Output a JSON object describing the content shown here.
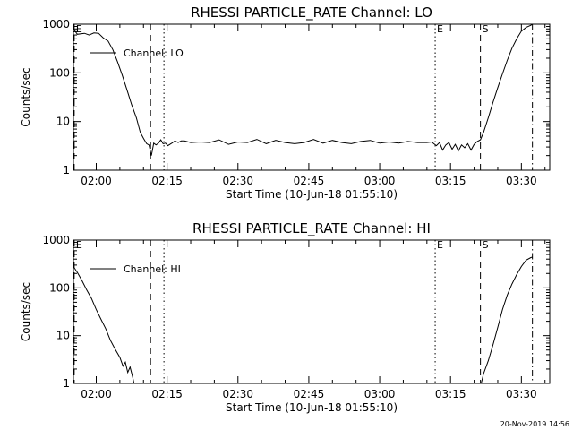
{
  "footer": "20-Nov-2019 14:56",
  "chart_data": [
    {
      "type": "line",
      "title": "RHESSI PARTICLE_RATE Channel: LO",
      "xlabel": "Start Time (10-Jun-18 01:55:10)",
      "ylabel": "Counts/sec",
      "yscale": "log",
      "ylim": [
        1,
        1000
      ],
      "xlim": [
        "01:55:10",
        "03:36:00"
      ],
      "x_ticks": [
        "02:00",
        "02:15",
        "02:30",
        "02:45",
        "03:00",
        "03:15",
        "03:30"
      ],
      "y_ticks": [
        "1",
        "10",
        "100",
        "1000"
      ],
      "legend": {
        "entries": [
          "Channel: LO"
        ],
        "placement": "top-left"
      },
      "markers": [
        {
          "label": "E",
          "time": "01:55:20",
          "style": "dashed"
        },
        {
          "label": "",
          "time": "02:11:30",
          "style": "dashed"
        },
        {
          "label": "",
          "time": "02:14:20",
          "style": "dotted"
        },
        {
          "label": "E",
          "time": "03:11:45",
          "style": "dotted"
        },
        {
          "label": "S",
          "time": "03:21:20",
          "style": "dashed"
        },
        {
          "label": "",
          "time": "03:32:20",
          "style": "dashdot"
        }
      ],
      "series": [
        {
          "name": "Channel: LO",
          "x": [
            "01:55:10",
            "01:56:00",
            "01:57:30",
            "01:58:30",
            "01:59:30",
            "02:00:30",
            "02:01:30",
            "02:02:30",
            "02:03:30",
            "02:04:30",
            "02:05:30",
            "02:06:30",
            "02:07:30",
            "02:08:30",
            "02:09:20",
            "02:10:00",
            "02:10:40",
            "02:11:10",
            "02:11:40",
            "02:12:10",
            "02:12:40",
            "02:13:10",
            "02:13:40",
            "02:14:10",
            "02:14:40",
            "02:15:10",
            "02:16:00",
            "02:16:40",
            "02:17:20",
            "02:18:00",
            "02:18:40",
            "02:20:00",
            "02:22:00",
            "02:24:00",
            "02:26:00",
            "02:28:00",
            "02:30:00",
            "02:32:00",
            "02:34:00",
            "02:36:00",
            "02:38:00",
            "02:40:00",
            "02:42:00",
            "02:44:00",
            "02:46:00",
            "02:48:00",
            "02:50:00",
            "02:52:00",
            "02:54:00",
            "02:56:00",
            "02:58:00",
            "03:00:00",
            "03:02:00",
            "03:04:00",
            "03:06:00",
            "03:08:00",
            "03:10:00",
            "03:11:00",
            "03:12:00",
            "03:12:40",
            "03:13:20",
            "03:14:00",
            "03:14:40",
            "03:15:20",
            "03:16:00",
            "03:16:40",
            "03:17:20",
            "03:18:00",
            "03:18:40",
            "03:19:20",
            "03:20:00",
            "03:20:40",
            "03:21:20",
            "03:22:00",
            "03:23:00",
            "03:24:00",
            "03:25:00",
            "03:26:00",
            "03:27:00",
            "03:28:00",
            "03:29:00",
            "03:30:00",
            "03:31:00",
            "03:32:00",
            "03:32:20"
          ],
          "y": [
            800,
            620,
            650,
            600,
            660,
            650,
            520,
            450,
            300,
            170,
            90,
            45,
            22,
            12,
            6,
            4.5,
            3.5,
            3.3,
            2,
            3.6,
            3.3,
            3.6,
            4.2,
            3.5,
            3.6,
            3.2,
            3.6,
            4,
            3.7,
            4,
            4,
            3.7,
            3.8,
            3.7,
            4.2,
            3.4,
            3.8,
            3.7,
            4.3,
            3.5,
            4.1,
            3.7,
            3.5,
            3.7,
            4.3,
            3.6,
            4.1,
            3.7,
            3.5,
            3.9,
            4.1,
            3.6,
            3.8,
            3.6,
            3.9,
            3.7,
            3.7,
            3.8,
            3.2,
            3.7,
            2.6,
            3.3,
            3.7,
            2.7,
            3.4,
            2.5,
            3.3,
            2.9,
            3.5,
            2.6,
            3.4,
            3.9,
            4.2,
            6,
            12,
            25,
            50,
            95,
            180,
            320,
            500,
            720,
            860,
            950,
            1000
          ]
        }
      ]
    },
    {
      "type": "line",
      "title": "RHESSI PARTICLE_RATE Channel: HI",
      "xlabel": "Start Time (10-Jun-18 01:55:10)",
      "ylabel": "Counts/sec",
      "yscale": "log",
      "ylim": [
        1,
        1000
      ],
      "xlim": [
        "01:55:10",
        "03:36:00"
      ],
      "x_ticks": [
        "02:00",
        "02:15",
        "02:30",
        "02:45",
        "03:00",
        "03:15",
        "03:30"
      ],
      "y_ticks": [
        "1",
        "10",
        "100",
        "1000"
      ],
      "legend": {
        "entries": [
          "Channel: HI"
        ],
        "placement": "top-left"
      },
      "markers": [
        {
          "label": "E",
          "time": "01:55:20",
          "style": "dashed"
        },
        {
          "label": "",
          "time": "02:11:30",
          "style": "dashed"
        },
        {
          "label": "",
          "time": "02:14:20",
          "style": "dotted"
        },
        {
          "label": "E",
          "time": "03:11:45",
          "style": "dotted"
        },
        {
          "label": "S",
          "time": "03:21:20",
          "style": "dashed"
        },
        {
          "label": "",
          "time": "03:32:20",
          "style": "dashdot"
        }
      ],
      "series": [
        {
          "name": "Channel: HI",
          "x": [
            "01:55:10",
            "01:56:00",
            "01:57:00",
            "01:58:00",
            "01:59:00",
            "02:00:00",
            "02:01:00",
            "02:02:00",
            "02:03:00",
            "02:04:00",
            "02:05:00",
            "02:05:40",
            "02:06:10",
            "02:06:40",
            "02:07:10",
            "02:07:40",
            "02:08:00",
            "03:21:30",
            "03:22:00",
            "03:23:00",
            "03:24:00",
            "03:25:00",
            "03:26:00",
            "03:27:00",
            "03:28:00",
            "03:29:00",
            "03:30:00",
            "03:31:00",
            "03:32:00",
            "03:32:20"
          ],
          "y": [
            280,
            210,
            140,
            90,
            60,
            35,
            22,
            14,
            8,
            5.2,
            3.5,
            2.3,
            2.8,
            1.7,
            2.2,
            1.4,
            1.0,
            1.0,
            1.6,
            3,
            6.5,
            15,
            35,
            70,
            120,
            190,
            280,
            380,
            430,
            440
          ]
        }
      ]
    }
  ]
}
